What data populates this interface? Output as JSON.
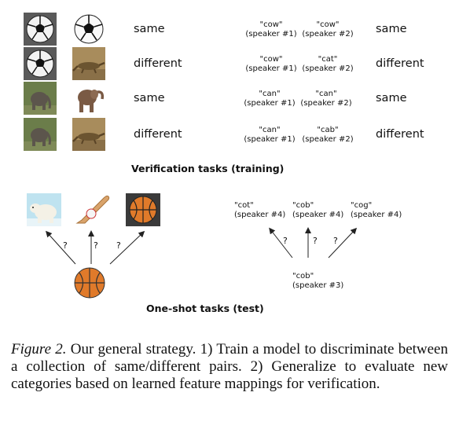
{
  "verification": {
    "heading": "Verification tasks (training)",
    "rows": [
      {
        "image_left": "soccer-ball",
        "image_right": "soccer-ball",
        "image_label": "same",
        "audio_left": {
          "word": "\"cow\"",
          "speaker": "(speaker #1)"
        },
        "audio_right": {
          "word": "\"cow\"",
          "speaker": "(speaker #2)"
        },
        "audio_label": "same"
      },
      {
        "image_left": "soccer-ball",
        "image_right": "lizard",
        "image_label": "different",
        "audio_left": {
          "word": "\"cow\"",
          "speaker": "(speaker #1)"
        },
        "audio_right": {
          "word": "\"cat\"",
          "speaker": "(speaker #2)"
        },
        "audio_label": "different"
      },
      {
        "image_left": "elephant",
        "image_right": "elephant",
        "image_label": "same",
        "audio_left": {
          "word": "\"can\"",
          "speaker": "(speaker #1)"
        },
        "audio_right": {
          "word": "\"can\"",
          "speaker": "(speaker #2)"
        },
        "audio_label": "same"
      },
      {
        "image_left": "elephant",
        "image_right": "lizard",
        "image_label": "different",
        "audio_left": {
          "word": "\"can\"",
          "speaker": "(speaker #1)"
        },
        "audio_right": {
          "word": "\"cab\"",
          "speaker": "(speaker #2)"
        },
        "audio_label": "different"
      }
    ]
  },
  "oneshot": {
    "heading": "One-shot tasks (test)",
    "candidate_images": [
      "polar-bear",
      "baseball-bat",
      "basketball"
    ],
    "query_image": "basketball",
    "candidate_audio": [
      {
        "word": "\"cot\"",
        "speaker": "(speaker #4)"
      },
      {
        "word": "\"cob\"",
        "speaker": "(speaker #4)"
      },
      {
        "word": "\"cog\"",
        "speaker": "(speaker #4)"
      }
    ],
    "query_audio": {
      "word": "\"cob\"",
      "speaker": "(speaker #3)"
    },
    "question_mark": "?"
  },
  "caption": {
    "label": "Figure 2.",
    "text": " Our general strategy.  1) Train a model to discriminate between a collection of same/different pairs.  2) Generalize to evaluate new categories based on learned feature mappings for verification."
  }
}
